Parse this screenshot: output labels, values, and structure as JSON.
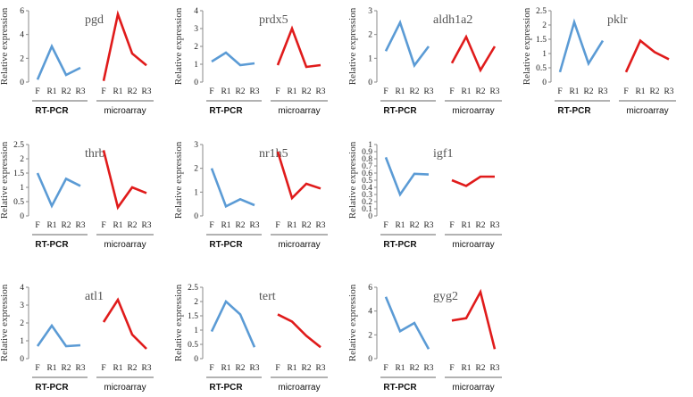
{
  "ylabel": "Relative expression",
  "categories": [
    "F",
    "R1",
    "R2",
    "R3"
  ],
  "group_labels": [
    "RT-PCR",
    "microarray"
  ],
  "colors": {
    "rtpcr": "#5b9bd5",
    "microarray": "#e01b1b"
  },
  "chart_data": [
    {
      "type": "line",
      "title": "pgd",
      "ylim": [
        0,
        6
      ],
      "yticks": [
        "0",
        "2",
        "4",
        "6"
      ],
      "series": [
        {
          "name": "RT-PCR",
          "values": [
            0.2,
            3.0,
            0.6,
            1.2
          ]
        },
        {
          "name": "microarray",
          "values": [
            0.1,
            5.7,
            2.4,
            1.4
          ]
        }
      ]
    },
    {
      "type": "line",
      "title": "prdx5",
      "ylim": [
        0,
        4
      ],
      "yticks": [
        "0",
        "1",
        "2",
        "3",
        "4"
      ],
      "series": [
        {
          "name": "RT-PCR",
          "values": [
            1.15,
            1.65,
            0.95,
            1.05
          ]
        },
        {
          "name": "microarray",
          "values": [
            0.95,
            3.0,
            0.85,
            0.95
          ]
        }
      ]
    },
    {
      "type": "line",
      "title": "aldh1a2",
      "ylim": [
        0,
        3
      ],
      "yticks": [
        "0",
        "1",
        "2",
        "3"
      ],
      "series": [
        {
          "name": "RT-PCR",
          "values": [
            1.3,
            2.5,
            0.7,
            1.5
          ]
        },
        {
          "name": "microarray",
          "values": [
            0.8,
            1.9,
            0.5,
            1.5
          ]
        }
      ]
    },
    {
      "type": "line",
      "title": "pklr",
      "ylim": [
        0,
        2.5
      ],
      "yticks": [
        "0",
        "0.5",
        "1",
        "1.5",
        "2",
        "2.5"
      ],
      "series": [
        {
          "name": "RT-PCR",
          "values": [
            0.35,
            2.1,
            0.65,
            1.45
          ]
        },
        {
          "name": "microarray",
          "values": [
            0.35,
            1.45,
            1.05,
            0.8
          ]
        }
      ]
    },
    {
      "type": "line",
      "title": "thrb",
      "ylim": [
        0,
        2.5
      ],
      "yticks": [
        "0",
        "0.5",
        "1",
        "1.5",
        "2",
        "2.5"
      ],
      "series": [
        {
          "name": "RT-PCR",
          "values": [
            1.5,
            0.35,
            1.3,
            1.05
          ]
        },
        {
          "name": "microarray",
          "values": [
            2.3,
            0.3,
            1.0,
            0.8
          ]
        }
      ]
    },
    {
      "type": "line",
      "title": "nr1h5",
      "ylim": [
        0,
        3
      ],
      "yticks": [
        "0",
        "1",
        "2",
        "3"
      ],
      "series": [
        {
          "name": "RT-PCR",
          "values": [
            2.0,
            0.4,
            0.7,
            0.45
          ]
        },
        {
          "name": "microarray",
          "values": [
            2.7,
            0.75,
            1.35,
            1.15
          ]
        }
      ]
    },
    {
      "type": "line",
      "title": "igf1",
      "ylim": [
        0,
        1
      ],
      "yticks": [
        "0",
        "0.1",
        "0.2",
        "0.3",
        "0.4",
        "0.5",
        "0.6",
        "0.7",
        "0.8",
        "0.9",
        "1"
      ],
      "series": [
        {
          "name": "RT-PCR",
          "values": [
            0.82,
            0.3,
            0.59,
            0.58
          ]
        },
        {
          "name": "microarray",
          "values": [
            0.5,
            0.42,
            0.55,
            0.55
          ]
        }
      ]
    },
    {
      "type": "line",
      "title": "atl1",
      "ylim": [
        0,
        4
      ],
      "yticks": [
        "0",
        "1",
        "2",
        "3",
        "4"
      ],
      "series": [
        {
          "name": "RT-PCR",
          "values": [
            0.7,
            1.85,
            0.7,
            0.75
          ]
        },
        {
          "name": "microarray",
          "values": [
            2.05,
            3.3,
            1.35,
            0.55
          ]
        }
      ]
    },
    {
      "type": "line",
      "title": "tert",
      "ylim": [
        0,
        2.5
      ],
      "yticks": [
        "0",
        "0.5",
        "1",
        "1.5",
        "2",
        "2.5"
      ],
      "series": [
        {
          "name": "RT-PCR",
          "values": [
            0.95,
            2.0,
            1.55,
            0.4
          ]
        },
        {
          "name": "microarray",
          "values": [
            1.55,
            1.3,
            0.8,
            0.4
          ]
        }
      ]
    },
    {
      "type": "line",
      "title": "gyg2",
      "ylim": [
        0,
        6
      ],
      "yticks": [
        "0",
        "2",
        "4",
        "6"
      ],
      "series": [
        {
          "name": "RT-PCR",
          "values": [
            5.2,
            2.3,
            3.0,
            0.8
          ]
        },
        {
          "name": "microarray",
          "values": [
            3.2,
            3.4,
            5.6,
            0.8
          ]
        }
      ]
    }
  ]
}
